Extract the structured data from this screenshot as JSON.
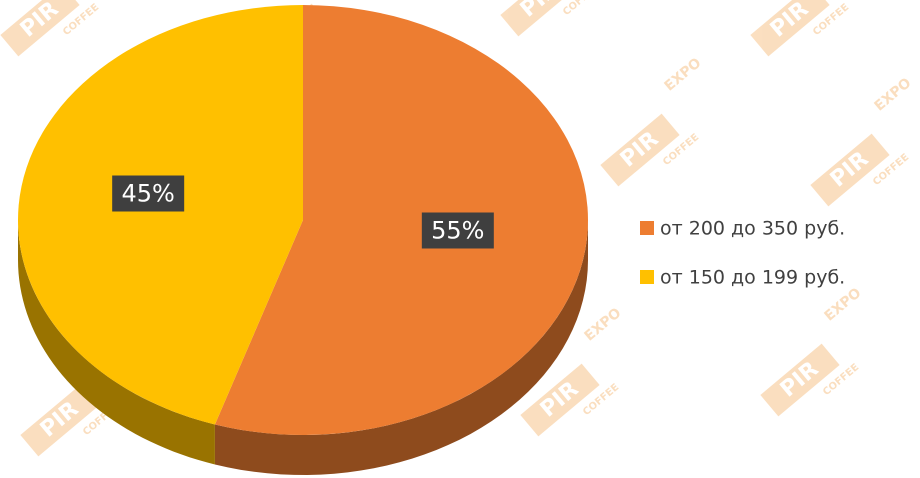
{
  "chart_data": {
    "type": "pie",
    "categories": [
      "от 200 до 350 руб.",
      "от 150 до 199 руб."
    ],
    "values": [
      55,
      45
    ],
    "value_labels": [
      "55%",
      "45%"
    ],
    "colors": [
      "#ed7d31",
      "#ffc000"
    ],
    "legend": "right"
  },
  "watermark": [
    "PIR",
    "EXPO",
    "COFFEE"
  ]
}
